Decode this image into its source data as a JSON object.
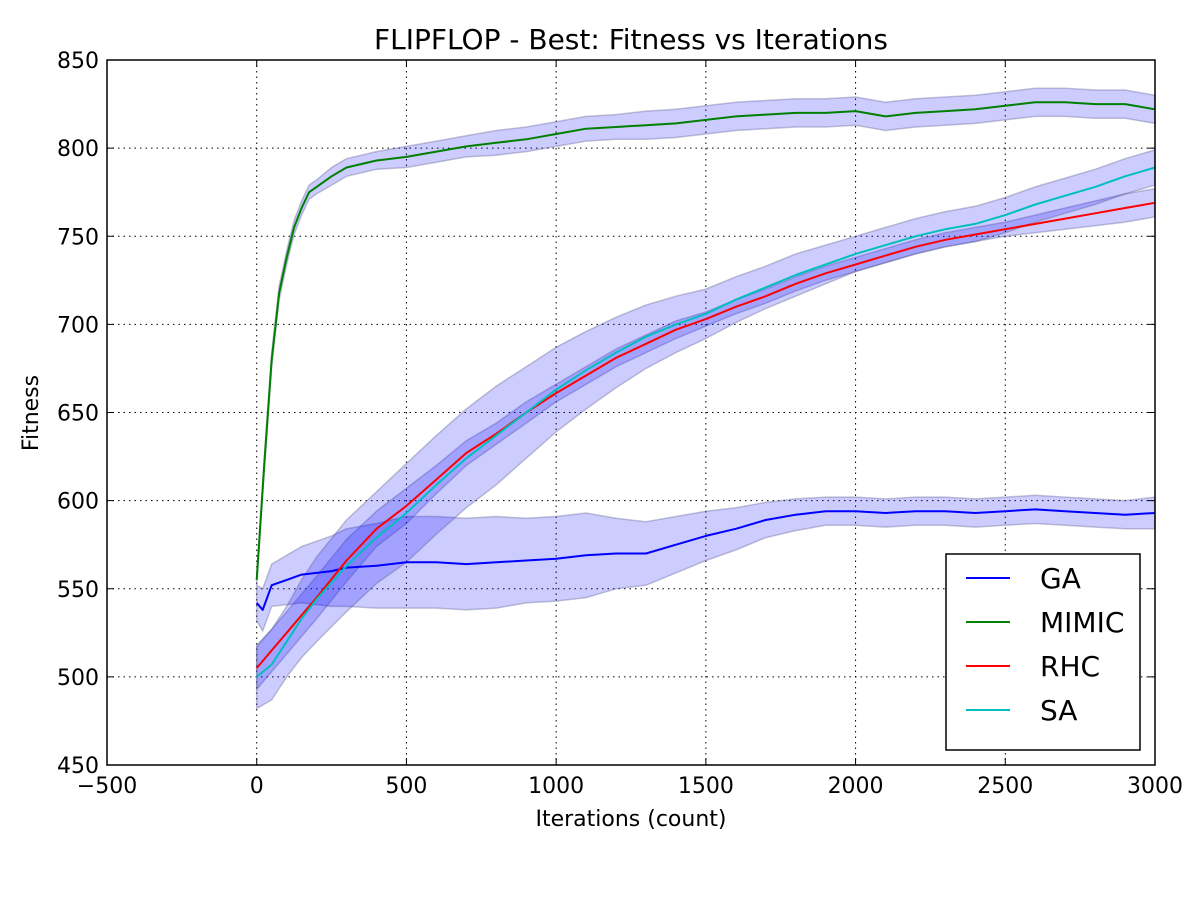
{
  "chart_data": {
    "type": "line",
    "title": "FLIPFLOP - Best: Fitness vs Iterations",
    "xlabel": "Iterations (count)",
    "ylabel": "Fitness",
    "xlim": [
      -500,
      3000
    ],
    "ylim": [
      450,
      850
    ],
    "xticks": [
      -500,
      0,
      500,
      1000,
      1500,
      2000,
      2500,
      3000
    ],
    "xtick_labels": [
      "−500",
      "0",
      "500",
      "1000",
      "1500",
      "2000",
      "2500",
      "3000"
    ],
    "yticks": [
      450,
      500,
      550,
      600,
      650,
      700,
      750,
      800,
      850
    ],
    "ytick_labels": [
      "450",
      "500",
      "550",
      "600",
      "650",
      "700",
      "750",
      "800",
      "850"
    ],
    "grid": true,
    "legend_position": "bottom-right",
    "band_color": "#0000ff",
    "band_opacity": 0.2,
    "series": [
      {
        "name": "GA",
        "color": "#0000ff",
        "x": [
          0,
          20,
          50,
          100,
          150,
          200,
          250,
          300,
          400,
          500,
          600,
          700,
          800,
          900,
          1000,
          1100,
          1200,
          1300,
          1400,
          1500,
          1600,
          1700,
          1800,
          1900,
          2000,
          2100,
          2200,
          2300,
          2400,
          2500,
          2600,
          2700,
          2800,
          2900,
          3000
        ],
        "y": [
          542,
          538,
          552,
          555,
          558,
          559,
          560,
          562,
          563,
          565,
          565,
          564,
          565,
          566,
          567,
          569,
          570,
          570,
          575,
          580,
          584,
          589,
          592,
          594,
          594,
          593,
          594,
          594,
          593,
          594,
          595,
          594,
          593,
          592,
          593
        ],
        "band": [
          10,
          12,
          12,
          14,
          16,
          18,
          20,
          22,
          24,
          26,
          26,
          26,
          26,
          24,
          24,
          24,
          20,
          18,
          16,
          14,
          12,
          10,
          9,
          8,
          8,
          8,
          8,
          8,
          8,
          8,
          8,
          8,
          8,
          8,
          9
        ]
      },
      {
        "name": "MIMIC",
        "color": "#008000",
        "x": [
          0,
          25,
          50,
          75,
          100,
          125,
          150,
          175,
          200,
          250,
          300,
          400,
          500,
          600,
          700,
          800,
          900,
          1000,
          1100,
          1200,
          1300,
          1400,
          1500,
          1600,
          1700,
          1800,
          1900,
          2000,
          2100,
          2200,
          2300,
          2400,
          2500,
          2600,
          2700,
          2800,
          2900,
          3000
        ],
        "y": [
          555,
          620,
          680,
          718,
          738,
          755,
          766,
          775,
          778,
          784,
          789,
          793,
          795,
          798,
          801,
          803,
          805,
          808,
          811,
          812,
          813,
          814,
          816,
          818,
          819,
          820,
          820,
          821,
          818,
          820,
          821,
          822,
          824,
          826,
          826,
          825,
          825,
          822
        ],
        "band": [
          3,
          4,
          4,
          4,
          4,
          4,
          4,
          4,
          4,
          5,
          5,
          5,
          6,
          6,
          6,
          7,
          7,
          7,
          7,
          7,
          8,
          8,
          8,
          8,
          8,
          8,
          8,
          8,
          8,
          8,
          8,
          8,
          8,
          8,
          8,
          8,
          8,
          8
        ]
      },
      {
        "name": "RHC",
        "color": "#ff0000",
        "x": [
          0,
          50,
          100,
          150,
          200,
          300,
          400,
          500,
          600,
          700,
          800,
          900,
          1000,
          1100,
          1200,
          1300,
          1400,
          1500,
          1600,
          1700,
          1800,
          1900,
          2000,
          2100,
          2200,
          2300,
          2400,
          2500,
          2600,
          2700,
          2800,
          2900,
          3000
        ],
        "y": [
          505,
          515,
          525,
          535,
          545,
          566,
          584,
          597,
          612,
          627,
          638,
          650,
          661,
          671,
          681,
          689,
          697,
          703,
          710,
          716,
          723,
          729,
          734,
          739,
          744,
          748,
          751,
          754,
          757,
          760,
          763,
          766,
          769
        ],
        "band": [
          12,
          12,
          12,
          12,
          12,
          12,
          10,
          10,
          8,
          7,
          6,
          6,
          5,
          5,
          5,
          5,
          5,
          4,
          4,
          4,
          4,
          4,
          4,
          4,
          4,
          4,
          4,
          4,
          5,
          6,
          7,
          8,
          8
        ]
      },
      {
        "name": "SA",
        "color": "#00bfbf",
        "x": [
          0,
          50,
          100,
          150,
          200,
          300,
          400,
          500,
          600,
          700,
          800,
          900,
          1000,
          1100,
          1200,
          1300,
          1400,
          1500,
          1600,
          1700,
          1800,
          1900,
          2000,
          2100,
          2200,
          2300,
          2400,
          2500,
          2600,
          2700,
          2800,
          2900,
          3000
        ],
        "y": [
          500,
          507,
          520,
          533,
          544,
          563,
          579,
          593,
          609,
          624,
          637,
          650,
          663,
          674,
          684,
          693,
          700,
          706,
          714,
          721,
          728,
          734,
          740,
          745,
          750,
          754,
          757,
          762,
          768,
          773,
          778,
          784,
          789
        ],
        "band": [
          18,
          20,
          20,
          22,
          24,
          26,
          26,
          28,
          28,
          28,
          28,
          26,
          24,
          22,
          20,
          18,
          16,
          14,
          13,
          12,
          12,
          11,
          10,
          10,
          10,
          10,
          10,
          10,
          10,
          10,
          10,
          10,
          10
        ]
      }
    ]
  }
}
